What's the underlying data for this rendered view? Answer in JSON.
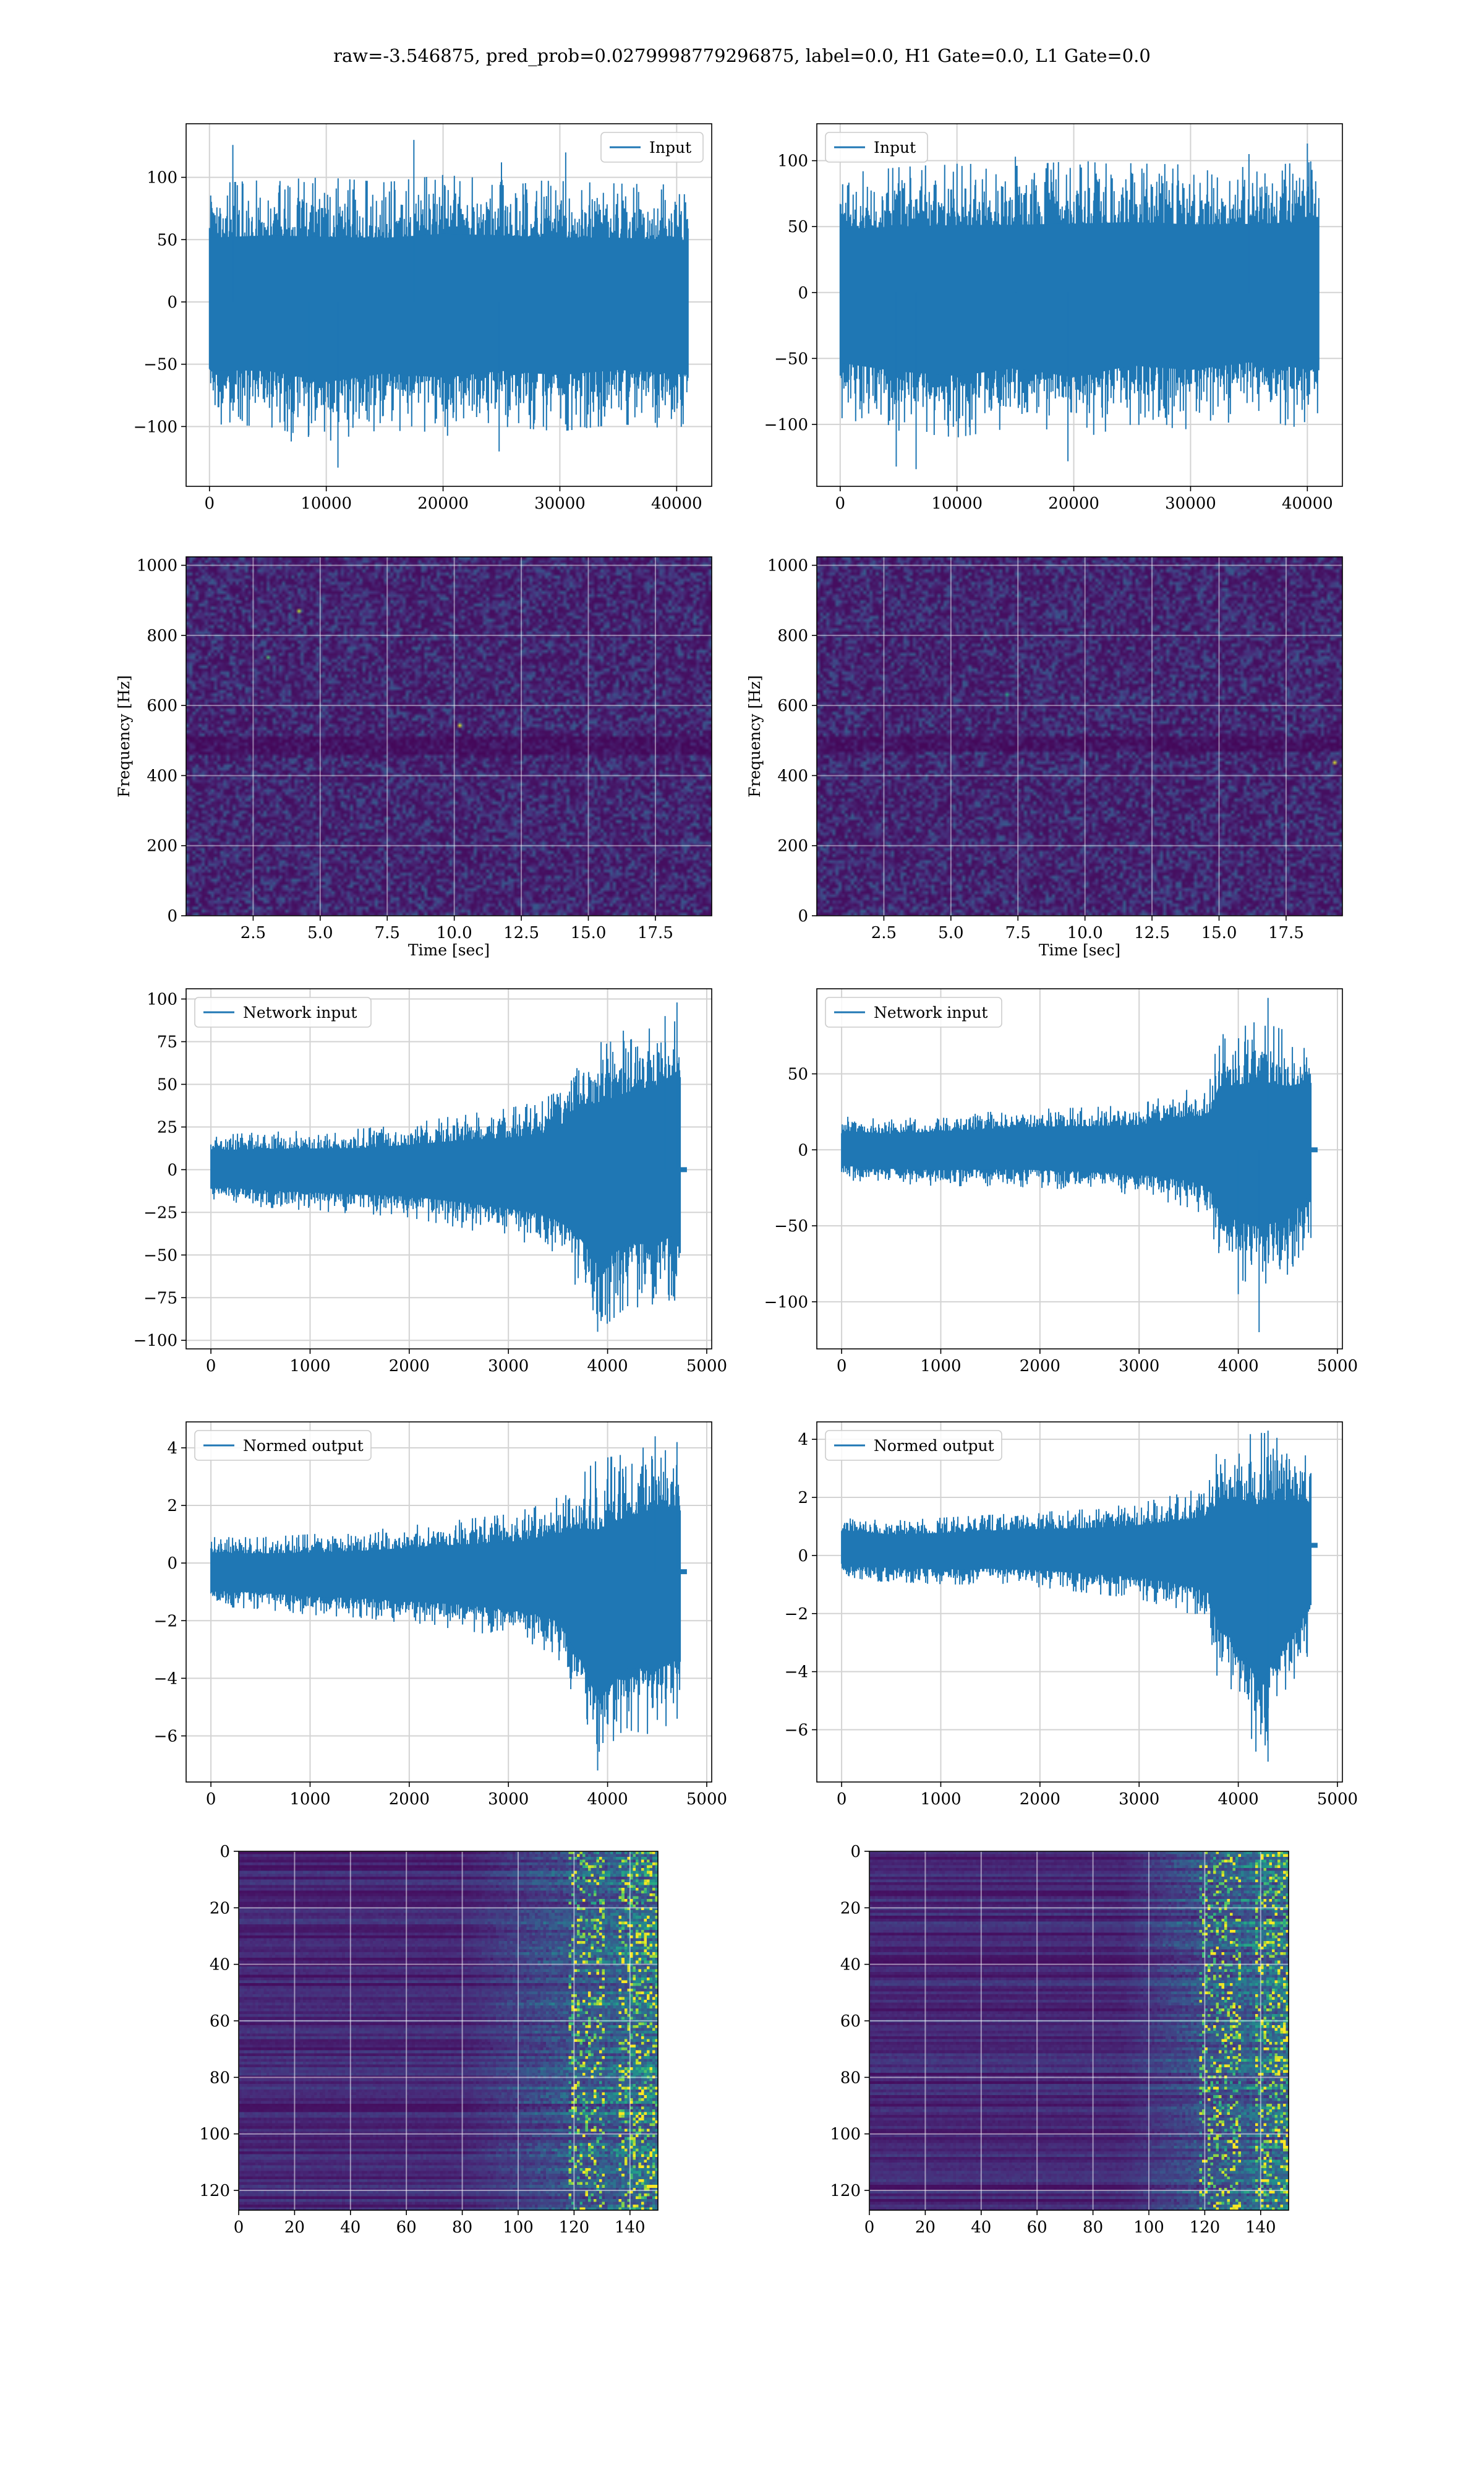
{
  "figure": {
    "suptitle": "raw=-3.546875, pred_prob=0.0279998779296875, label=0.0, H1 Gate=0.0, L1 Gate=0.0"
  },
  "colors": {
    "line": "#1f77b4",
    "grid": "#d3d3d3",
    "viridis_low": "#440154",
    "viridis_mid": "#21918c",
    "viridis_high": "#fde725"
  },
  "chart_data": [
    {
      "id": "h1-input",
      "type": "line",
      "legend": [
        "Input"
      ],
      "legend_loc": "upper right",
      "xlim": [
        -2000,
        43000
      ],
      "ylim": [
        -148,
        143
      ],
      "xticks": [
        0,
        10000,
        20000,
        30000,
        40000
      ],
      "yticks": [
        -100,
        -50,
        0,
        50,
        100
      ],
      "grid": true,
      "series": [
        {
          "n": 40960,
          "envelope_x": [
            0,
            5000,
            10000,
            15000,
            20000,
            25000,
            30000,
            35000,
            40960
          ],
          "upper": [
            95,
            98,
            100,
            96,
            102,
            98,
            97,
            95,
            94
          ],
          "lower": [
            -98,
            -100,
            -112,
            -102,
            -108,
            -100,
            -104,
            -98,
            -103
          ],
          "spikes": [
            [
              2000,
              126
            ],
            [
              7000,
              -112
            ],
            [
              11000,
              -133
            ],
            [
              17500,
              130
            ],
            [
              25000,
              112
            ],
            [
              30500,
              120
            ],
            [
              8500,
              -107
            ],
            [
              24800,
              -120
            ]
          ]
        }
      ]
    },
    {
      "id": "l1-input",
      "type": "line",
      "legend": [
        "Input"
      ],
      "legend_loc": "upper left",
      "xlim": [
        -2000,
        43000
      ],
      "ylim": [
        -147,
        128
      ],
      "xticks": [
        0,
        10000,
        20000,
        30000,
        40000
      ],
      "yticks": [
        -100,
        -50,
        0,
        50,
        100
      ],
      "grid": true,
      "series": [
        {
          "n": 40960,
          "envelope_x": [
            0,
            5000,
            10000,
            15000,
            20000,
            25000,
            30000,
            35000,
            40960
          ],
          "upper": [
            90,
            95,
            98,
            96,
            100,
            98,
            97,
            95,
            100
          ],
          "lower": [
            -95,
            -105,
            -110,
            -102,
            -112,
            -100,
            -104,
            -96,
            -105
          ],
          "spikes": [
            [
              4800,
              -132
            ],
            [
              6500,
              -134
            ],
            [
              19500,
              -128
            ],
            [
              35000,
              105
            ],
            [
              40000,
              113
            ],
            [
              15000,
              103
            ]
          ]
        }
      ]
    },
    {
      "id": "h1-spectrogram",
      "type": "heatmap",
      "xlabel": "Time [sec]",
      "ylabel": "Frequency [Hz]",
      "xlim": [
        0,
        19.6
      ],
      "ylim": [
        0,
        1024
      ],
      "xticks": [
        2.5,
        5.0,
        7.5,
        10.0,
        12.5,
        15.0,
        17.5
      ],
      "yticks": [
        0,
        200,
        400,
        600,
        800,
        1000
      ],
      "grid": true,
      "colormap": "viridis",
      "value_range": [
        0,
        1
      ],
      "noise_mean": 0.18,
      "dark_bands_hz": [
        [
          460,
          520
        ]
      ],
      "hot_spots": [
        [
          10.2,
          545,
          0.95
        ],
        [
          4.1,
          870,
          0.9
        ],
        [
          3.0,
          740,
          0.7
        ]
      ]
    },
    {
      "id": "l1-spectrogram",
      "type": "heatmap",
      "xlabel": "Time [sec]",
      "ylabel": "Frequency [Hz]",
      "xlim": [
        0,
        19.6
      ],
      "ylim": [
        0,
        1024
      ],
      "xticks": [
        2.5,
        5.0,
        7.5,
        10.0,
        12.5,
        15.0,
        17.5
      ],
      "yticks": [
        0,
        200,
        400,
        600,
        800,
        1000
      ],
      "grid": true,
      "colormap": "viridis",
      "value_range": [
        0,
        1
      ],
      "noise_mean": 0.18,
      "dark_bands_hz": [
        [
          470,
          520
        ]
      ],
      "hot_spots": [
        [
          19.2,
          438,
          0.95
        ],
        [
          7.0,
          640,
          0.6
        ]
      ]
    },
    {
      "id": "h1-network-input",
      "type": "line",
      "legend": [
        "Network input"
      ],
      "legend_loc": "upper left",
      "xlim": [
        -250,
        5050
      ],
      "ylim": [
        -105,
        106
      ],
      "xticks": [
        0,
        1000,
        2000,
        3000,
        4000,
        5000
      ],
      "yticks": [
        -100,
        -75,
        -50,
        -25,
        0,
        25,
        50,
        75,
        100
      ],
      "grid": true,
      "series": [
        {
          "n": 4800,
          "active_end": 4730,
          "tail_end": 4800,
          "envelope_x": [
            0,
            500,
            1000,
            1500,
            2000,
            2500,
            3000,
            3300,
            3500,
            3700,
            3900,
            4200,
            4500,
            4730
          ],
          "upper": [
            20,
            22,
            23,
            24,
            27,
            32,
            36,
            40,
            46,
            70,
            78,
            82,
            88,
            98
          ],
          "lower": [
            -18,
            -22,
            -24,
            -26,
            -28,
            -34,
            -40,
            -45,
            -52,
            -70,
            -95,
            -80,
            -82,
            -75
          ],
          "spikes": [
            [
              3900,
              -95
            ],
            [
              4700,
              98
            ],
            [
              4580,
              90
            ],
            [
              4030,
              75
            ]
          ]
        }
      ]
    },
    {
      "id": "l1-network-input",
      "type": "line",
      "legend": [
        "Network input"
      ],
      "legend_loc": "upper left",
      "xlim": [
        -250,
        5050
      ],
      "ylim": [
        -131,
        106
      ],
      "xticks": [
        0,
        1000,
        2000,
        3000,
        4000,
        5000
      ],
      "yticks": [
        -100,
        -50,
        0,
        50
      ],
      "grid": true,
      "series": [
        {
          "n": 4800,
          "active_end": 4730,
          "tail_end": 4800,
          "envelope_x": [
            0,
            500,
            1000,
            1500,
            2000,
            2500,
            3000,
            3500,
            3700,
            3800,
            4000,
            4200,
            4500,
            4730
          ],
          "upper": [
            22,
            20,
            23,
            25,
            27,
            28,
            30,
            40,
            42,
            75,
            80,
            85,
            78,
            75
          ],
          "lower": [
            -20,
            -22,
            -24,
            -24,
            -25,
            -27,
            -30,
            -38,
            -45,
            -72,
            -85,
            -90,
            -82,
            -58
          ],
          "spikes": [
            [
              4300,
              100
            ],
            [
              4210,
              -120
            ],
            [
              4000,
              -95
            ]
          ]
        }
      ]
    },
    {
      "id": "h1-normed-output",
      "type": "line",
      "legend": [
        "Normed output"
      ],
      "legend_loc": "upper left",
      "xlim": [
        -250,
        5050
      ],
      "ylim": [
        -7.6,
        4.9
      ],
      "xticks": [
        0,
        1000,
        2000,
        3000,
        4000,
        5000
      ],
      "yticks": [
        -6,
        -4,
        -2,
        0,
        2,
        4
      ],
      "grid": true,
      "series": [
        {
          "n": 4800,
          "center": -0.3,
          "active_end": 4730,
          "tail_end": 4800,
          "envelope_x": [
            0,
            500,
            1000,
            1500,
            2000,
            2500,
            3000,
            3300,
            3500,
            3700,
            3900,
            4200,
            4500,
            4730
          ],
          "upper": [
            0.9,
            0.9,
            1.0,
            1.1,
            1.3,
            1.5,
            1.7,
            2.0,
            2.3,
            3.0,
            3.6,
            3.8,
            4.2,
            4.2
          ],
          "lower": [
            -1.5,
            -1.6,
            -1.8,
            -1.9,
            -2.1,
            -2.3,
            -2.6,
            -2.9,
            -3.3,
            -5.0,
            -7.2,
            -5.8,
            -6.0,
            -5.5
          ],
          "spikes": [
            [
              3900,
              -7.2
            ],
            [
              4480,
              4.4
            ],
            [
              4700,
              4.2
            ]
          ]
        }
      ]
    },
    {
      "id": "l1-normed-output",
      "type": "line",
      "legend": [
        "Normed output"
      ],
      "legend_loc": "upper left",
      "xlim": [
        -250,
        5050
      ],
      "ylim": [
        -7.8,
        4.6
      ],
      "xticks": [
        0,
        1000,
        2000,
        3000,
        4000,
        5000
      ],
      "yticks": [
        -6,
        -4,
        -2,
        0,
        2,
        4
      ],
      "grid": true,
      "series": [
        {
          "n": 4800,
          "center": 0.35,
          "active_end": 4730,
          "tail_end": 4800,
          "envelope_x": [
            0,
            500,
            1000,
            1500,
            2000,
            2500,
            3000,
            3500,
            3700,
            3800,
            4000,
            4200,
            4500,
            4730
          ],
          "upper": [
            1.4,
            1.2,
            1.3,
            1.4,
            1.5,
            1.6,
            1.8,
            2.2,
            2.5,
            3.8,
            4.0,
            4.3,
            3.9,
            3.3
          ],
          "lower": [
            -0.9,
            -0.9,
            -1.0,
            -1.0,
            -1.1,
            -1.3,
            -1.5,
            -2.0,
            -2.4,
            -4.5,
            -5.0,
            -7.0,
            -5.0,
            -3.2
          ],
          "spikes": [
            [
              4300,
              -7.1
            ],
            [
              4300,
              4.3
            ]
          ]
        }
      ]
    },
    {
      "id": "h1-activation",
      "type": "heatmap",
      "xlim": [
        0,
        150
      ],
      "ylim": [
        127,
        0
      ],
      "xticks": [
        0,
        20,
        40,
        60,
        80,
        100,
        120,
        140
      ],
      "yticks": [
        0,
        20,
        40,
        60,
        80,
        100,
        120
      ],
      "grid": true,
      "colormap": "viridis",
      "rows": 128,
      "cols": 150,
      "activity_start_col": 80,
      "hot_cols": [
        [
          118,
          130
        ],
        [
          136,
          150
        ]
      ]
    },
    {
      "id": "l1-activation",
      "type": "heatmap",
      "xlim": [
        0,
        150
      ],
      "ylim": [
        127,
        0
      ],
      "xticks": [
        0,
        20,
        40,
        60,
        80,
        100,
        120,
        140
      ],
      "yticks": [
        0,
        20,
        40,
        60,
        80,
        100,
        120
      ],
      "grid": true,
      "colormap": "viridis",
      "rows": 128,
      "cols": 150,
      "activity_start_col": 90,
      "hot_cols": [
        [
          118,
          132
        ],
        [
          138,
          150
        ]
      ]
    }
  ]
}
